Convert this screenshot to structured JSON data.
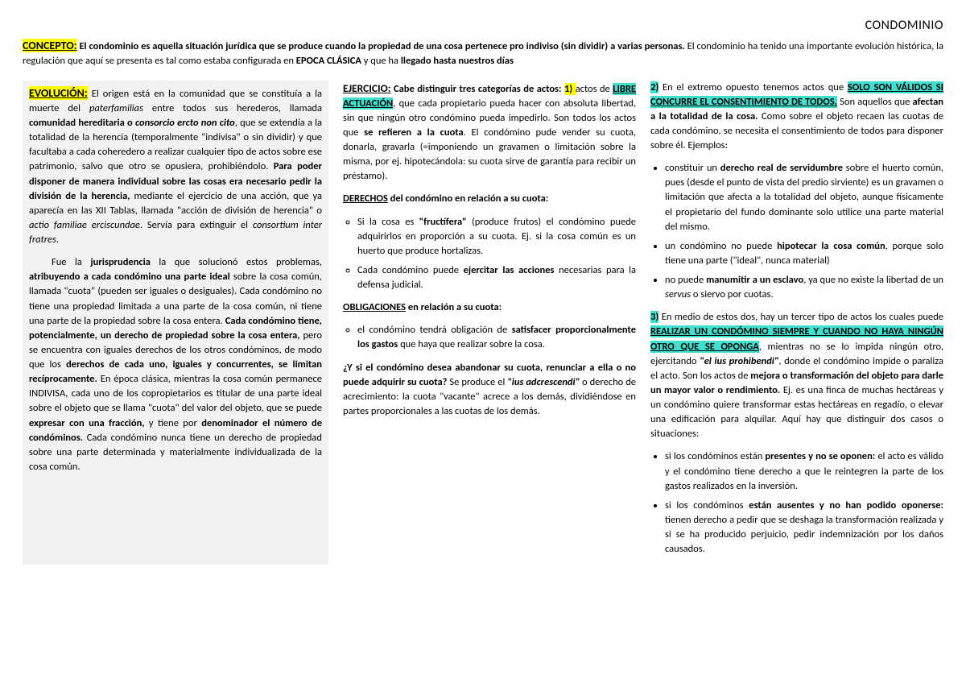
{
  "title": "CONDOMINIO",
  "concepto": {
    "label": "CONCEPTO:",
    "t1": "El condominio es aquella situación jurídica que se produce cuando la propiedad de una cosa pertenece pro indiviso (sin dividir) a varias personas.",
    "t2": " El condominio ha tenido una importante evolución histórica, la regulación que aquí se presenta es tal como estaba configurada en ",
    "t3": "EPOCA CLÁSICA",
    "t4": " y que ha ",
    "t5": "llegado hasta nuestros días"
  },
  "col1": {
    "evolucion_label": "EVOLUCIÓN:",
    "p1a": " El origen está en la comunidad que se constituía a la muerte del ",
    "p1b": "paterfamilias",
    "p1c": " entre todos sus herederos, llamada ",
    "p1d": "comunidad hereditaria o ",
    "p1e": "consorcio ercto non cito",
    "p1f": ", que se extendía a la totalidad de la herencia (temporalmente \"indivisa\" o sin dividir) y que facultaba a cada coheredero a realizar cualquier tipo de actos sobre ese patrimonio, salvo que otro se opusiera, prohibiéndolo. ",
    "p1g": "Para poder disponer de manera individual sobre las cosas era necesario pedir la división de la herencia,",
    "p1h": " mediante el ejercicio de una acción, que ya aparecía en las XII Tablas, llamada \"acción de división de herencia\" o ",
    "p1i": "actio familiae erciscundae",
    "p1j": ". Servía para extinguir el ",
    "p1k": "consortium inter fratres",
    "p1l": ".",
    "p2a": "Fue la ",
    "p2b": "jurisprudencia",
    "p2c": " la que solucionó estos problemas, ",
    "p2d": "atribuyendo a cada condómino una parte ideal",
    "p2e": " sobre la cosa común, llamada \"cuota\" (pueden ser iguales o desiguales). Cada condómino no tiene una propiedad limitada a una parte de la cosa común, ni tiene una parte de la propiedad sobre la cosa entera. ",
    "p2f": "Cada condómino tiene, potencialmente, un derecho de propiedad sobre la cosa entera,",
    "p2g": " pero se encuentra con iguales derechos de los otros condóminos, de modo que los ",
    "p2h": "derechos de cada uno, iguales y concurrentes, se limitan recíprocamente.",
    "p2i": " En época clásica, mientras la cosa común permanece INDIVISA, cada uno de los copropietarios es titular de una parte ideal sobre el objeto que se llama \"cuota\" del valor del objeto, que se puede ",
    "p2j": "expresar con una fracción,",
    "p2k": " y tiene por ",
    "p2l": "denominador el número de condóminos.",
    "p2m": " Cada condómino nunca tiene un derecho de propiedad sobre una parte determinada y materialmente individualizada de la cosa común."
  },
  "col2": {
    "ejercicio_label": "EJERCICIO:",
    "t1": " Cabe distinguir tres categorías de actos:",
    "n1": " 1) ",
    "t2": "actos de ",
    "t2h": "LIBRE ACTUACIÓN",
    "t3": ", que cada propietario pueda hacer con absoluta libertad, sin que ningún otro condómino pueda impedirlo. Son todos los actos que ",
    "t4": "se refieren a la cuota",
    "t5": ". El condómino pude vender su cuota, donarla, gravarla (=imponiendo un gravamen o limitación sobre la misma, por ej. hipotecándola: su cuota sirve de garantía para recibir un préstamo).",
    "derechos_label": "DERECHOS",
    "derechos_tail": " del condómino en relación a su cuota:",
    "li1a": "Si la cosa es ",
    "li1b": "\"fructífera\"",
    "li1c": " (produce frutos) el condómino puede adquirirlos en proporción a su cuota. Ej. si la cosa común es un huerto que produce hortalizas.",
    "li2a": "Cada condómino puede ",
    "li2b": "ejercitar las acciones",
    "li2c": " necesarias para la defensa judicial.",
    "oblig_label": "OBLIGACIONES",
    "oblig_tail": " en relación a su cuota:",
    "li3a": "el condómino tendrá obligación de ",
    "li3b": "satisfacer proporcionalmente los gastos",
    "li3c": " que haya que realizar sobre la cosa.",
    "q1": "¿Y si el condómino desea abandonar su cuota, renunciar a ella o no puede adquirir su cuota?",
    "q2": " Se produce el ",
    "q3": "\"ius adcrescendi\"",
    "q4": " o derecho de acrecimiento: la cuota \"vacante\" acrece a los demás, dividiéndose en partes proporcionales a las cuotas de los demás."
  },
  "col3": {
    "n2": "2)",
    "t1": " En el extremo opuesto tenemos actos que ",
    "h1": "SOLO SON VÁLIDOS SI CONCURRE EL CONSENTIMIENTO DE TODOS.",
    "t2": " Son aquellos que ",
    "t3": "afectan a la totalidad de la cosa.",
    "t4": " Como sobre el objeto recaen las cuotas de cada condómino, se necesita el consentimiento de todos para disponer sobre él. Ejemplos:",
    "b1a": "constituir un ",
    "b1b": "derecho real de servidumbre",
    "b1c": " sobre el huerto común, pues (desde el punto de vista del predio sirviente) es un gravamen o limitación que afecta a la totalidad del objeto, aunque físicamente el propietario del fundo dominante solo utilice una parte material del mismo.",
    "b2a": "un condómino no puede ",
    "b2b": "hipotecar la cosa común",
    "b2c": ", porque solo tiene una parte (\"ideal\", nunca material)",
    "b3a": "no puede ",
    "b3b": "manumitir a un esclavo",
    "b3c": ", ya que no existe la libertad de un ",
    "b3d": "servus",
    "b3e": " o siervo por cuotas.",
    "n3": "3)",
    "t5": " En medio de estos dos, hay un tercer tipo de actos los cuales puede ",
    "h2": "REALIZAR UN CONDÓMINO SIEMPRE Y CUANDO NO HAYA NINGÚN OTRO QUE SE OPONGA",
    "t6": ", mientras no se lo impida ningún otro, ejercitando ",
    "t7": "\"el ius prohibendi\"",
    "t8": ", donde el condómino impide o paraliza el acto. Son los actos de ",
    "t9": "mejora o transformación del objeto para darle un mayor valor o rendimiento.",
    "t10": " Ej. es una finca de muchas hectáreas y un condómino quiere transformar estas hectáreas en regadío, o elevar una edificación para alquilar. Aquí hay que distinguir dos casos o situaciones:",
    "c1a": "si los condóminos están ",
    "c1b": "presentes y no se oponen:",
    "c1c": " el acto es válido y el condómino tiene derecho a que le reintegren la parte de los gastos realizados en la inversión.",
    "c2a": "si los condóminos ",
    "c2b": "están ausentes y no han podido oponerse:",
    "c2c": " tienen derecho a pedir que se deshaga la transformación realizada y si se ha producido perjuicio, pedir indemnización por los daños causados."
  }
}
